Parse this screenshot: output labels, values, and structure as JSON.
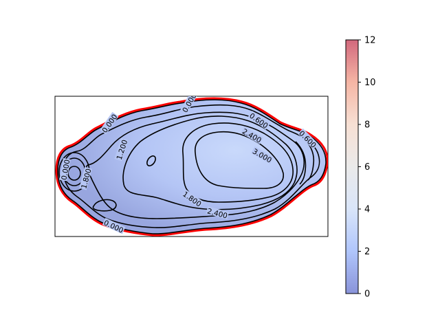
{
  "chart_data": {
    "type": "contour",
    "title": "",
    "xlabel": "",
    "ylabel": "",
    "axes_ticks_visible": false,
    "filled_colormap": "coolwarm",
    "boundary_color": "#ff0000",
    "contour_line_color": "#000000",
    "contour_levels": [
      0.0,
      0.6,
      1.2,
      1.8,
      2.4,
      3.0
    ],
    "contour_labels": [
      "0.000",
      "0.600",
      "1.200",
      "1.800",
      "2.400",
      "3.000",
      "0.000",
      "0.600",
      "0.000",
      "1.800",
      "2.400",
      "1.800",
      "0.000"
    ],
    "colorbar": {
      "min": 0,
      "max": 12,
      "ticks": [
        "0",
        "2",
        "4",
        "6",
        "8",
        "10",
        "12"
      ],
      "colors": [
        "#3b4cc0",
        "#7b9ff9",
        "#c0d4f5",
        "#dddcdc",
        "#f2cbb7",
        "#ee8468",
        "#b40426"
      ],
      "alpha": 0.6
    }
  }
}
